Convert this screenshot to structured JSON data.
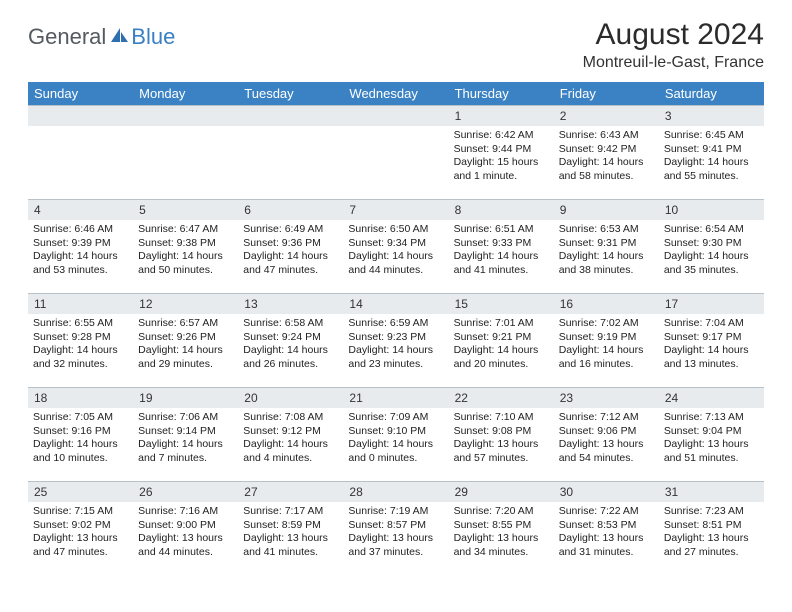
{
  "logo": {
    "word1": "General",
    "word2": "Blue"
  },
  "title": "August 2024",
  "location": "Montreuil-le-Gast, France",
  "colors": {
    "header_bg": "#3b82c4",
    "daynum_bg": "#e8ebee",
    "border": "#b8c0c8",
    "logo_gray": "#555a5f",
    "logo_blue": "#3b7fc4"
  },
  "day_headers": [
    "Sunday",
    "Monday",
    "Tuesday",
    "Wednesday",
    "Thursday",
    "Friday",
    "Saturday"
  ],
  "weeks": [
    [
      {
        "day": "",
        "sunrise": "",
        "sunset": "",
        "daylight": ""
      },
      {
        "day": "",
        "sunrise": "",
        "sunset": "",
        "daylight": ""
      },
      {
        "day": "",
        "sunrise": "",
        "sunset": "",
        "daylight": ""
      },
      {
        "day": "",
        "sunrise": "",
        "sunset": "",
        "daylight": ""
      },
      {
        "day": "1",
        "sunrise": "Sunrise: 6:42 AM",
        "sunset": "Sunset: 9:44 PM",
        "daylight": "Daylight: 15 hours and 1 minute."
      },
      {
        "day": "2",
        "sunrise": "Sunrise: 6:43 AM",
        "sunset": "Sunset: 9:42 PM",
        "daylight": "Daylight: 14 hours and 58 minutes."
      },
      {
        "day": "3",
        "sunrise": "Sunrise: 6:45 AM",
        "sunset": "Sunset: 9:41 PM",
        "daylight": "Daylight: 14 hours and 55 minutes."
      }
    ],
    [
      {
        "day": "4",
        "sunrise": "Sunrise: 6:46 AM",
        "sunset": "Sunset: 9:39 PM",
        "daylight": "Daylight: 14 hours and 53 minutes."
      },
      {
        "day": "5",
        "sunrise": "Sunrise: 6:47 AM",
        "sunset": "Sunset: 9:38 PM",
        "daylight": "Daylight: 14 hours and 50 minutes."
      },
      {
        "day": "6",
        "sunrise": "Sunrise: 6:49 AM",
        "sunset": "Sunset: 9:36 PM",
        "daylight": "Daylight: 14 hours and 47 minutes."
      },
      {
        "day": "7",
        "sunrise": "Sunrise: 6:50 AM",
        "sunset": "Sunset: 9:34 PM",
        "daylight": "Daylight: 14 hours and 44 minutes."
      },
      {
        "day": "8",
        "sunrise": "Sunrise: 6:51 AM",
        "sunset": "Sunset: 9:33 PM",
        "daylight": "Daylight: 14 hours and 41 minutes."
      },
      {
        "day": "9",
        "sunrise": "Sunrise: 6:53 AM",
        "sunset": "Sunset: 9:31 PM",
        "daylight": "Daylight: 14 hours and 38 minutes."
      },
      {
        "day": "10",
        "sunrise": "Sunrise: 6:54 AM",
        "sunset": "Sunset: 9:30 PM",
        "daylight": "Daylight: 14 hours and 35 minutes."
      }
    ],
    [
      {
        "day": "11",
        "sunrise": "Sunrise: 6:55 AM",
        "sunset": "Sunset: 9:28 PM",
        "daylight": "Daylight: 14 hours and 32 minutes."
      },
      {
        "day": "12",
        "sunrise": "Sunrise: 6:57 AM",
        "sunset": "Sunset: 9:26 PM",
        "daylight": "Daylight: 14 hours and 29 minutes."
      },
      {
        "day": "13",
        "sunrise": "Sunrise: 6:58 AM",
        "sunset": "Sunset: 9:24 PM",
        "daylight": "Daylight: 14 hours and 26 minutes."
      },
      {
        "day": "14",
        "sunrise": "Sunrise: 6:59 AM",
        "sunset": "Sunset: 9:23 PM",
        "daylight": "Daylight: 14 hours and 23 minutes."
      },
      {
        "day": "15",
        "sunrise": "Sunrise: 7:01 AM",
        "sunset": "Sunset: 9:21 PM",
        "daylight": "Daylight: 14 hours and 20 minutes."
      },
      {
        "day": "16",
        "sunrise": "Sunrise: 7:02 AM",
        "sunset": "Sunset: 9:19 PM",
        "daylight": "Daylight: 14 hours and 16 minutes."
      },
      {
        "day": "17",
        "sunrise": "Sunrise: 7:04 AM",
        "sunset": "Sunset: 9:17 PM",
        "daylight": "Daylight: 14 hours and 13 minutes."
      }
    ],
    [
      {
        "day": "18",
        "sunrise": "Sunrise: 7:05 AM",
        "sunset": "Sunset: 9:16 PM",
        "daylight": "Daylight: 14 hours and 10 minutes."
      },
      {
        "day": "19",
        "sunrise": "Sunrise: 7:06 AM",
        "sunset": "Sunset: 9:14 PM",
        "daylight": "Daylight: 14 hours and 7 minutes."
      },
      {
        "day": "20",
        "sunrise": "Sunrise: 7:08 AM",
        "sunset": "Sunset: 9:12 PM",
        "daylight": "Daylight: 14 hours and 4 minutes."
      },
      {
        "day": "21",
        "sunrise": "Sunrise: 7:09 AM",
        "sunset": "Sunset: 9:10 PM",
        "daylight": "Daylight: 14 hours and 0 minutes."
      },
      {
        "day": "22",
        "sunrise": "Sunrise: 7:10 AM",
        "sunset": "Sunset: 9:08 PM",
        "daylight": "Daylight: 13 hours and 57 minutes."
      },
      {
        "day": "23",
        "sunrise": "Sunrise: 7:12 AM",
        "sunset": "Sunset: 9:06 PM",
        "daylight": "Daylight: 13 hours and 54 minutes."
      },
      {
        "day": "24",
        "sunrise": "Sunrise: 7:13 AM",
        "sunset": "Sunset: 9:04 PM",
        "daylight": "Daylight: 13 hours and 51 minutes."
      }
    ],
    [
      {
        "day": "25",
        "sunrise": "Sunrise: 7:15 AM",
        "sunset": "Sunset: 9:02 PM",
        "daylight": "Daylight: 13 hours and 47 minutes."
      },
      {
        "day": "26",
        "sunrise": "Sunrise: 7:16 AM",
        "sunset": "Sunset: 9:00 PM",
        "daylight": "Daylight: 13 hours and 44 minutes."
      },
      {
        "day": "27",
        "sunrise": "Sunrise: 7:17 AM",
        "sunset": "Sunset: 8:59 PM",
        "daylight": "Daylight: 13 hours and 41 minutes."
      },
      {
        "day": "28",
        "sunrise": "Sunrise: 7:19 AM",
        "sunset": "Sunset: 8:57 PM",
        "daylight": "Daylight: 13 hours and 37 minutes."
      },
      {
        "day": "29",
        "sunrise": "Sunrise: 7:20 AM",
        "sunset": "Sunset: 8:55 PM",
        "daylight": "Daylight: 13 hours and 34 minutes."
      },
      {
        "day": "30",
        "sunrise": "Sunrise: 7:22 AM",
        "sunset": "Sunset: 8:53 PM",
        "daylight": "Daylight: 13 hours and 31 minutes."
      },
      {
        "day": "31",
        "sunrise": "Sunrise: 7:23 AM",
        "sunset": "Sunset: 8:51 PM",
        "daylight": "Daylight: 13 hours and 27 minutes."
      }
    ]
  ]
}
